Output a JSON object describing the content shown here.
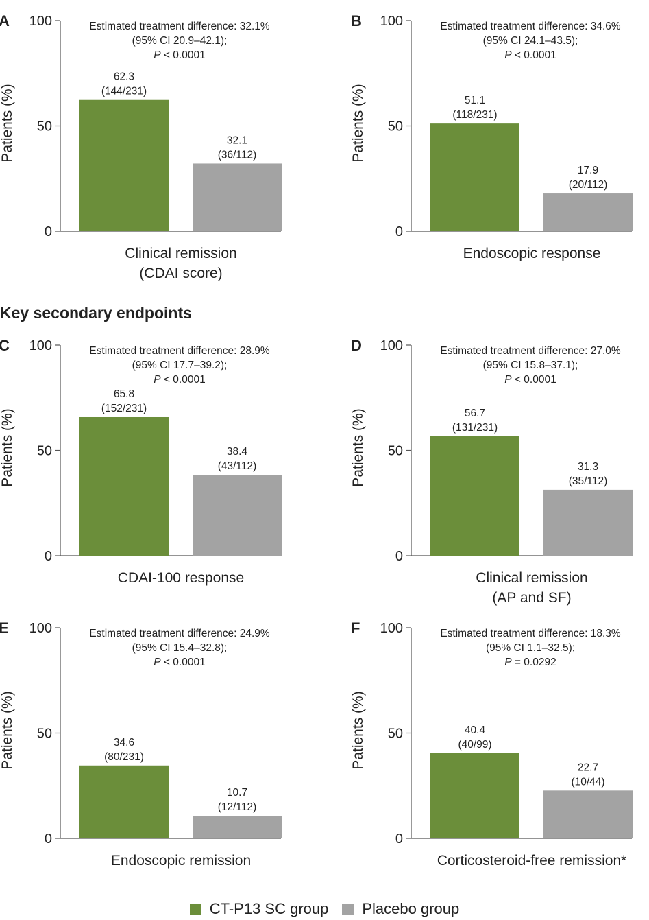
{
  "section_heading": "Key secondary endpoints",
  "y_axis_label": "Patients (%)",
  "colors": {
    "ctp13": "#6b8e3a",
    "placebo": "#a3a3a3"
  },
  "legend": [
    {
      "label": "CT-P13 SC group",
      "color": "#6b8e3a"
    },
    {
      "label": "Placebo group",
      "color": "#a3a3a3"
    }
  ],
  "chart_data": [
    {
      "type": "bar",
      "panel": "A",
      "category_lines": [
        "Clinical remission",
        "(CDAI score)"
      ],
      "annotation": [
        "Estimated treatment difference: 32.1%",
        "(95% CI 20.9–42.1);",
        "P < 0.0001"
      ],
      "ylabel": "Patients (%)",
      "ylim": [
        0,
        100
      ],
      "yticks": [
        0,
        50,
        100
      ],
      "bars": [
        {
          "group": "CT-P13 SC group",
          "value": 62.3,
          "label": "62.3",
          "fraction": "(144/231)"
        },
        {
          "group": "Placebo group",
          "value": 32.1,
          "label": "32.1",
          "fraction": "(36/112)"
        }
      ]
    },
    {
      "type": "bar",
      "panel": "B",
      "category_lines": [
        "Endoscopic response"
      ],
      "annotation": [
        "Estimated treatment difference: 34.6%",
        "(95% CI 24.1–43.5);",
        "P < 0.0001"
      ],
      "ylabel": "Patients (%)",
      "ylim": [
        0,
        100
      ],
      "yticks": [
        0,
        50,
        100
      ],
      "bars": [
        {
          "group": "CT-P13 SC group",
          "value": 51.1,
          "label": "51.1",
          "fraction": "(118/231)"
        },
        {
          "group": "Placebo group",
          "value": 17.9,
          "label": "17.9",
          "fraction": "(20/112)"
        }
      ]
    },
    {
      "type": "bar",
      "panel": "C",
      "category_lines": [
        "CDAI-100 response"
      ],
      "annotation": [
        "Estimated treatment difference: 28.9%",
        "(95% CI 17.7–39.2);",
        "P < 0.0001"
      ],
      "ylabel": "Patients (%)",
      "ylim": [
        0,
        100
      ],
      "yticks": [
        0,
        50,
        100
      ],
      "bars": [
        {
          "group": "CT-P13 SC group",
          "value": 65.8,
          "label": "65.8",
          "fraction": "(152/231)"
        },
        {
          "group": "Placebo group",
          "value": 38.4,
          "label": "38.4",
          "fraction": "(43/112)"
        }
      ]
    },
    {
      "type": "bar",
      "panel": "D",
      "category_lines": [
        "Clinical remission",
        "(AP and SF)"
      ],
      "annotation": [
        "Estimated treatment difference: 27.0%",
        "(95% CI 15.8–37.1);",
        "P < 0.0001"
      ],
      "ylabel": "Patients (%)",
      "ylim": [
        0,
        100
      ],
      "yticks": [
        0,
        50,
        100
      ],
      "bars": [
        {
          "group": "CT-P13 SC group",
          "value": 56.7,
          "label": "56.7",
          "fraction": "(131/231)"
        },
        {
          "group": "Placebo group",
          "value": 31.3,
          "label": "31.3",
          "fraction": "(35/112)"
        }
      ]
    },
    {
      "type": "bar",
      "panel": "E",
      "category_lines": [
        "Endoscopic remission"
      ],
      "annotation": [
        "Estimated treatment difference: 24.9%",
        "(95% CI 15.4–32.8);",
        "P < 0.0001"
      ],
      "ylabel": "Patients (%)",
      "ylim": [
        0,
        100
      ],
      "yticks": [
        0,
        50,
        100
      ],
      "bars": [
        {
          "group": "CT-P13 SC group",
          "value": 34.6,
          "label": "34.6",
          "fraction": "(80/231)"
        },
        {
          "group": "Placebo group",
          "value": 10.7,
          "label": "10.7",
          "fraction": "(12/112)"
        }
      ]
    },
    {
      "type": "bar",
      "panel": "F",
      "category_lines": [
        "Corticosteroid-free remission*"
      ],
      "annotation": [
        "Estimated treatment difference: 18.3%",
        "(95% CI 1.1–32.5);",
        "P = 0.0292"
      ],
      "ylabel": "Patients (%)",
      "ylim": [
        0,
        100
      ],
      "yticks": [
        0,
        50,
        100
      ],
      "bars": [
        {
          "group": "CT-P13 SC group",
          "value": 40.4,
          "label": "40.4",
          "fraction": "(40/99)"
        },
        {
          "group": "Placebo group",
          "value": 22.7,
          "label": "22.7",
          "fraction": "(10/44)"
        }
      ]
    }
  ]
}
